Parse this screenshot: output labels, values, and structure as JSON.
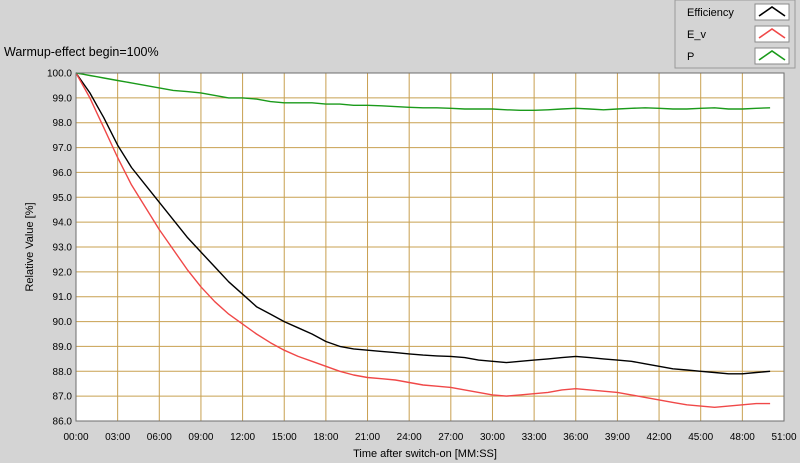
{
  "chart_data": {
    "type": "line",
    "title": "Warmup-effect begin=100%",
    "xlabel": "Time after switch-on [MM:SS]",
    "ylabel": "Relative Value [%]",
    "x_unit": "minutes",
    "xlim": [
      0,
      51
    ],
    "ylim": [
      86.0,
      100.0
    ],
    "x_ticks": [
      "00:00",
      "03:00",
      "06:00",
      "09:00",
      "12:00",
      "15:00",
      "18:00",
      "21:00",
      "24:00",
      "27:00",
      "30:00",
      "33:00",
      "36:00",
      "39:00",
      "42:00",
      "45:00",
      "48:00",
      "51:00"
    ],
    "y_ticks": [
      "100.0",
      "99.0",
      "98.0",
      "97.0",
      "96.0",
      "95.0",
      "94.0",
      "93.0",
      "92.0",
      "91.0",
      "90.0",
      "89.0",
      "88.0",
      "87.0",
      "86.0"
    ],
    "grid": true,
    "legend_position": "top-right",
    "colors": {
      "background": "#d4d4d4",
      "plot_area": "#ffffff",
      "grid": "#c8a050"
    },
    "x": [
      0,
      0.5,
      1,
      1.5,
      2,
      3,
      4,
      5,
      6,
      7,
      8,
      9,
      10,
      11,
      12,
      13,
      14,
      15,
      16,
      17,
      18,
      19,
      20,
      21,
      22,
      23,
      24,
      25,
      26,
      27,
      28,
      29,
      30,
      31,
      32,
      33,
      34,
      35,
      36,
      37,
      38,
      39,
      40,
      41,
      42,
      43,
      44,
      45,
      46,
      47,
      48,
      49,
      50
    ],
    "series": [
      {
        "name": "Efficiency",
        "color": "#000000",
        "values": [
          100.0,
          99.6,
          99.2,
          98.7,
          98.2,
          97.1,
          96.2,
          95.5,
          94.8,
          94.1,
          93.4,
          92.8,
          92.2,
          91.6,
          91.1,
          90.6,
          90.3,
          90.0,
          89.75,
          89.5,
          89.2,
          89.0,
          88.9,
          88.85,
          88.8,
          88.75,
          88.7,
          88.65,
          88.62,
          88.6,
          88.55,
          88.45,
          88.4,
          88.35,
          88.4,
          88.45,
          88.5,
          88.55,
          88.6,
          88.55,
          88.5,
          88.45,
          88.4,
          88.3,
          88.2,
          88.1,
          88.05,
          88.0,
          87.95,
          87.9,
          87.9,
          87.95,
          88.0
        ]
      },
      {
        "name": "E_v",
        "color": "#f04848",
        "values": [
          100.0,
          99.5,
          99.0,
          98.4,
          97.8,
          96.6,
          95.5,
          94.6,
          93.7,
          92.9,
          92.1,
          91.4,
          90.8,
          90.3,
          89.9,
          89.5,
          89.15,
          88.85,
          88.6,
          88.4,
          88.2,
          88.0,
          87.85,
          87.75,
          87.7,
          87.65,
          87.55,
          87.45,
          87.4,
          87.35,
          87.25,
          87.15,
          87.05,
          87.0,
          87.05,
          87.1,
          87.15,
          87.25,
          87.3,
          87.25,
          87.2,
          87.15,
          87.05,
          86.95,
          86.85,
          86.75,
          86.65,
          86.6,
          86.55,
          86.6,
          86.65,
          86.7,
          86.7
        ]
      },
      {
        "name": "P",
        "color": "#1a9a1a",
        "values": [
          100.0,
          99.95,
          99.9,
          99.85,
          99.8,
          99.7,
          99.6,
          99.5,
          99.4,
          99.3,
          99.25,
          99.2,
          99.1,
          99.0,
          99.0,
          98.95,
          98.85,
          98.8,
          98.8,
          98.8,
          98.75,
          98.75,
          98.7,
          98.7,
          98.68,
          98.65,
          98.62,
          98.6,
          98.6,
          98.58,
          98.55,
          98.55,
          98.55,
          98.52,
          98.5,
          98.5,
          98.52,
          98.55,
          98.58,
          98.55,
          98.52,
          98.55,
          98.58,
          98.6,
          98.58,
          98.55,
          98.55,
          98.58,
          98.6,
          98.55,
          98.55,
          98.58,
          98.6
        ]
      }
    ]
  }
}
